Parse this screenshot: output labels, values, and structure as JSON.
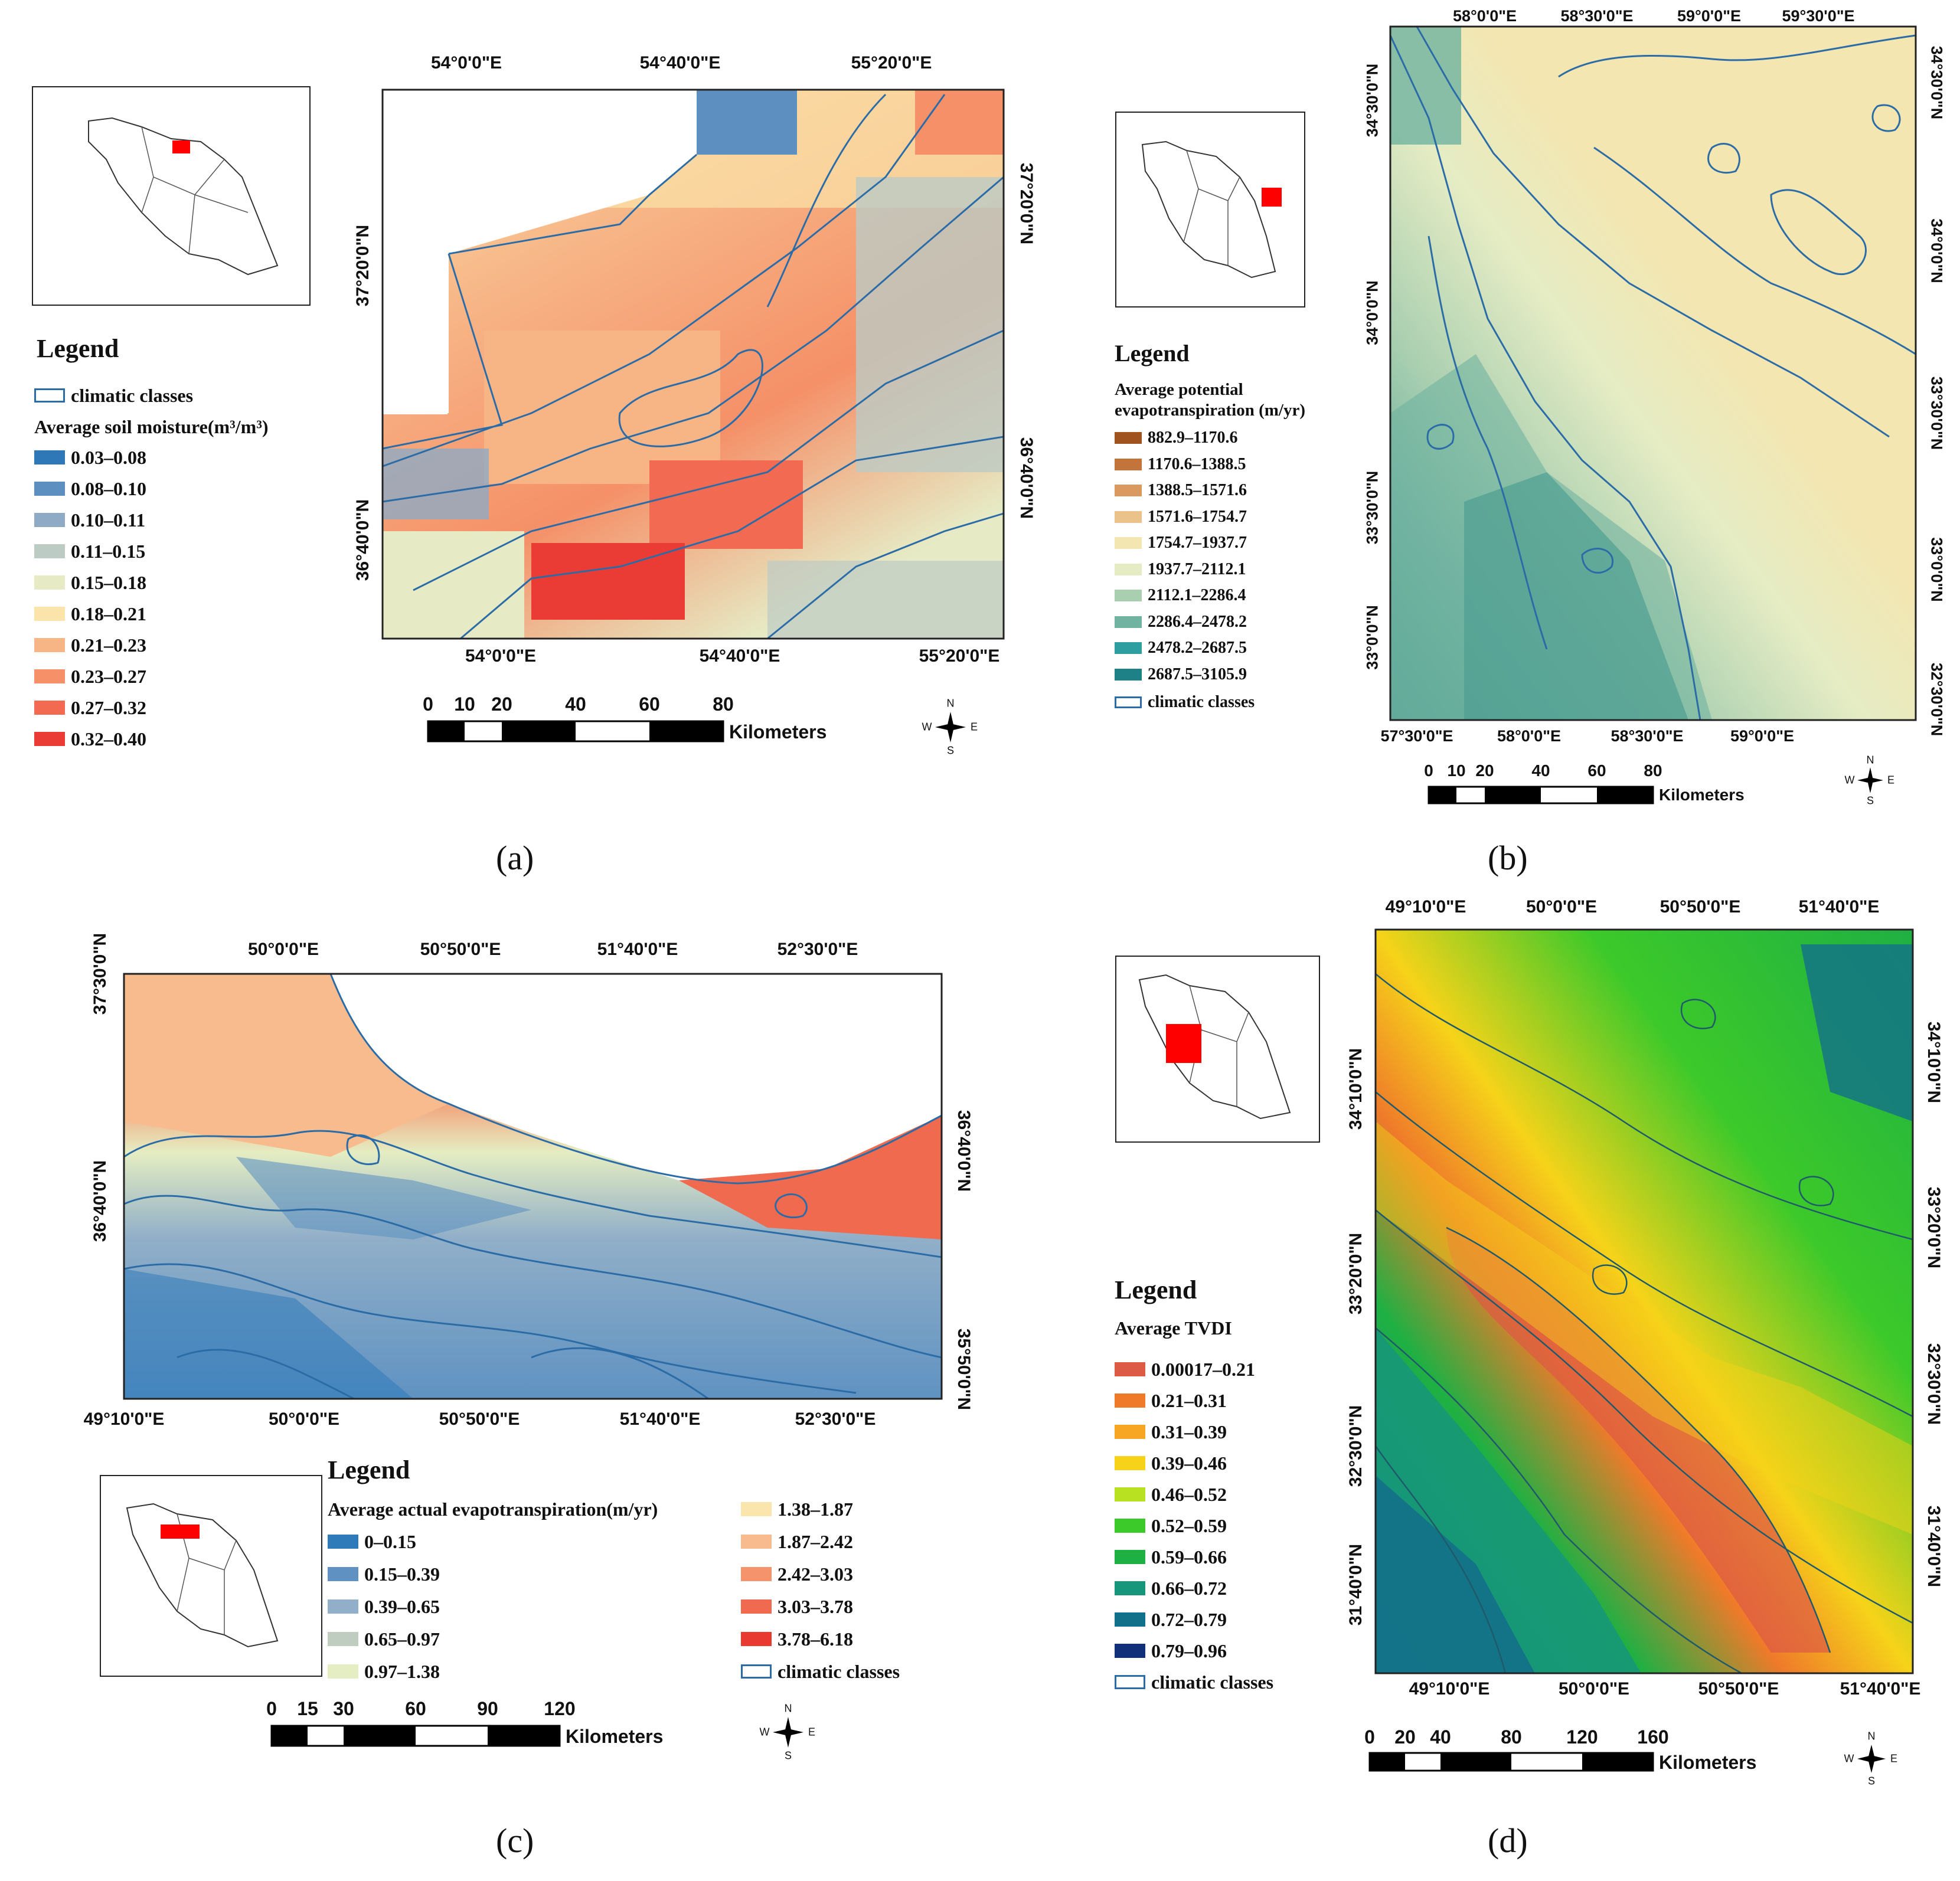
{
  "panels": {
    "a": {
      "label": "(a)",
      "legend_title": "Legend",
      "legend_heading": "Average soil moisture(m³/m³)",
      "climatic_label": "climatic classes",
      "classes": [
        {
          "range": "0.03–0.08",
          "color": "#2e78b8"
        },
        {
          "range": "0.08–0.10",
          "color": "#5d8fc0"
        },
        {
          "range": "0.10–0.11",
          "color": "#8eaac4"
        },
        {
          "range": "0.11–0.15",
          "color": "#bccbc4"
        },
        {
          "range": "0.15–0.18",
          "color": "#e6ebc5"
        },
        {
          "range": "0.18–0.21",
          "color": "#fbe4aa"
        },
        {
          "range": "0.21–0.23",
          "color": "#f7b586"
        },
        {
          "range": "0.23–0.27",
          "color": "#f59068"
        },
        {
          "range": "0.27–0.32",
          "color": "#f26a52"
        },
        {
          "range": "0.32–0.40",
          "color": "#eb3b35"
        }
      ],
      "top_ticks": [
        "54°0'0\"E",
        "54°40'0\"E",
        "55°20'0\"E"
      ],
      "bottom_ticks": [
        "54°0'0\"E",
        "54°40'0\"E",
        "55°20'0\"E"
      ],
      "left_ticks": [
        "37°20'0\"N",
        "36°40'0\"N"
      ],
      "right_ticks": [
        "37°20'0\"N",
        "36°40'0\"N"
      ],
      "scale_labels": [
        "0",
        "10",
        "20",
        "40",
        "60",
        "80"
      ],
      "scale_unit": "Kilometers"
    },
    "b": {
      "label": "(b)",
      "legend_title": "Legend",
      "legend_heading_1": "Average potential",
      "legend_heading_2": "evapotranspiration (m/yr)",
      "climatic_label": "climatic classes",
      "classes": [
        {
          "range": "882.9–1170.6",
          "color": "#a0521f"
        },
        {
          "range": "1170.6–1388.5",
          "color": "#c2743a"
        },
        {
          "range": "1388.5–1571.6",
          "color": "#d9995f"
        },
        {
          "range": "1571.6–1754.7",
          "color": "#ecc28b"
        },
        {
          "range": "1754.7–1937.7",
          "color": "#f4e6b0"
        },
        {
          "range": "1937.7–2112.1",
          "color": "#e5ecc4"
        },
        {
          "range": "2112.1–2286.4",
          "color": "#a9cfb0"
        },
        {
          "range": "2286.4–2478.2",
          "color": "#6fb3a0"
        },
        {
          "range": "2478.2–2687.5",
          "color": "#2e9ea0"
        },
        {
          "range": "2687.5–3105.9",
          "color": "#1f8188"
        }
      ],
      "top_ticks": [
        "58°0'0\"E",
        "58°30'0\"E",
        "59°0'0\"E",
        "59°30'0\"E"
      ],
      "bottom_ticks": [
        "57°30'0\"E",
        "58°0'0\"E",
        "58°30'0\"E",
        "59°0'0\"E"
      ],
      "left_ticks": [
        "34°30'0\"N",
        "34°0'0\"N",
        "33°30'0\"N",
        "33°0'0\"N"
      ],
      "right_ticks": [
        "34°30'0\"N",
        "34°0'0\"N",
        "33°30'0\"N",
        "33°0'0\"N",
        "32°30'0\"N"
      ],
      "scale_labels": [
        "0",
        "10",
        "20",
        "40",
        "60",
        "80"
      ],
      "scale_unit": "Kilometers"
    },
    "c": {
      "label": "(c)",
      "legend_title": "Legend",
      "legend_heading": "Average actual evapotranspiration(m/yr)",
      "climatic_label": "climatic classes",
      "classes": [
        {
          "range": "0–0.15",
          "color": "#2f7ab9"
        },
        {
          "range": "0.15–0.39",
          "color": "#5f92c2"
        },
        {
          "range": "0.39–0.65",
          "color": "#91afc8"
        },
        {
          "range": "0.65–0.97",
          "color": "#bfcdc1"
        },
        {
          "range": "0.97–1.38",
          "color": "#e5edc2"
        },
        {
          "range": "1.38–1.87",
          "color": "#fae6ad"
        },
        {
          "range": "1.87–2.42",
          "color": "#f8bb8d"
        },
        {
          "range": "2.42–3.03",
          "color": "#f5936c"
        },
        {
          "range": "3.03–3.78",
          "color": "#f06a4f"
        },
        {
          "range": "3.78–6.18",
          "color": "#e93a32"
        }
      ],
      "top_ticks": [
        "50°0'0\"E",
        "50°50'0\"E",
        "51°40'0\"E",
        "52°30'0\"E"
      ],
      "bottom_ticks": [
        "49°10'0\"E",
        "50°0'0\"E",
        "50°50'0\"E",
        "51°40'0\"E",
        "52°30'0\"E"
      ],
      "left_ticks": [
        "37°30'0\"N",
        "36°40'0\"N"
      ],
      "right_ticks": [
        "36°40'0\"N",
        "35°50'0\"N"
      ],
      "scale_labels": [
        "0",
        "15",
        "30",
        "60",
        "90",
        "120"
      ],
      "scale_unit": "Kilometers"
    },
    "d": {
      "label": "(d)",
      "legend_title": "Legend",
      "legend_heading": "Average TVDI",
      "climatic_label": "climatic classes",
      "classes": [
        {
          "range": "0.00017–0.21",
          "color": "#dd5a45"
        },
        {
          "range": "0.21–0.31",
          "color": "#ef7a2a"
        },
        {
          "range": "0.31–0.39",
          "color": "#f7a623"
        },
        {
          "range": "0.39–0.46",
          "color": "#f6d319"
        },
        {
          "range": "0.46–0.52",
          "color": "#b8e121"
        },
        {
          "range": "0.52–0.59",
          "color": "#3cc92a"
        },
        {
          "range": "0.59–0.66",
          "color": "#1fb043"
        },
        {
          "range": "0.66–0.72",
          "color": "#16967a"
        },
        {
          "range": "0.72–0.79",
          "color": "#13708a"
        },
        {
          "range": "0.79–0.96",
          "color": "#10307a"
        }
      ],
      "top_ticks": [
        "49°10'0\"E",
        "50°0'0\"E",
        "50°50'0\"E",
        "51°40'0\"E"
      ],
      "bottom_ticks": [
        "49°10'0\"E",
        "50°0'0\"E",
        "50°50'0\"E",
        "51°40'0\"E"
      ],
      "left_ticks": [
        "34°10'0\"N",
        "33°20'0\"N",
        "32°30'0\"N",
        "31°40'0\"N"
      ],
      "right_ticks": [
        "34°10'0\"N",
        "33°20'0\"N",
        "32°30'0\"N",
        "31°40'0\"N"
      ],
      "scale_labels": [
        "0",
        "20",
        "40",
        "80",
        "120",
        "160"
      ],
      "scale_unit": "Kilometers"
    }
  },
  "compass": {
    "n": "N",
    "s": "S",
    "e": "E",
    "w": "W"
  },
  "colors": {
    "contour": "#2b6ca7",
    "frame": "#222222",
    "inset_highlight": "#ff0000"
  }
}
